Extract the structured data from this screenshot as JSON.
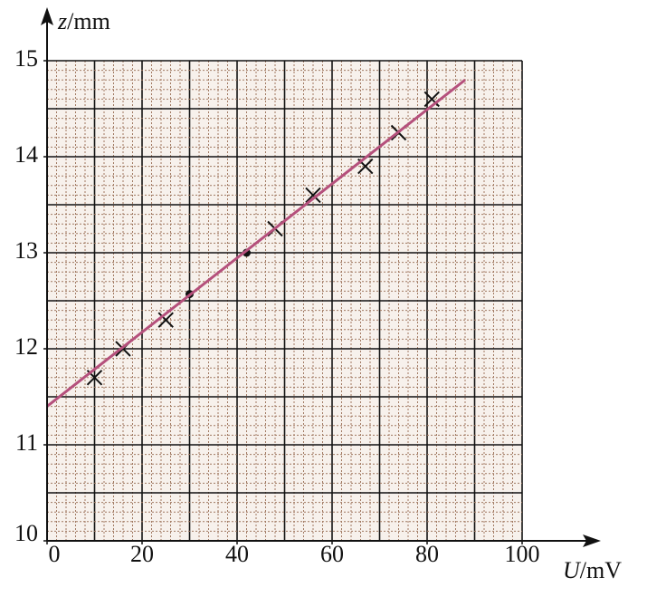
{
  "chart_data": {
    "type": "scatter",
    "x_label": [
      "U",
      "/mV"
    ],
    "y_label": [
      "z",
      "/mm"
    ],
    "xlim": [
      0,
      100
    ],
    "ylim": [
      10,
      15
    ],
    "xticks": [
      0,
      20,
      40,
      60,
      80,
      100
    ],
    "yticks": [
      10,
      11,
      12,
      13,
      14,
      15
    ],
    "grid": true,
    "grid_color": "#a07860",
    "series": [
      {
        "marker": "cross",
        "color": "#111111",
        "x": [
          10,
          16,
          25,
          48,
          56,
          67,
          74,
          81
        ],
        "values": [
          11.7,
          12.0,
          12.3,
          13.25,
          13.6,
          13.9,
          14.25,
          14.6
        ]
      },
      {
        "marker": "dot",
        "color": "#111111",
        "x": [
          30,
          42
        ],
        "values": [
          12.57,
          13.0
        ]
      },
      {
        "marker": "line",
        "color": "#b5507c",
        "x": [
          0,
          88
        ],
        "values": [
          11.4,
          14.8
        ]
      }
    ]
  }
}
